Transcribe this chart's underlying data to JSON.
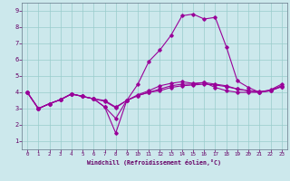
{
  "xlabel": "Windchill (Refroidissement éolien,°C)",
  "bg_color": "#cce8ec",
  "line_color": "#990099",
  "grid_color": "#99cccc",
  "text_color": "#660066",
  "spine_color": "#667788",
  "xlim": [
    -0.5,
    23.5
  ],
  "ylim": [
    0.5,
    9.5
  ],
  "xticks": [
    0,
    1,
    2,
    3,
    4,
    5,
    6,
    7,
    8,
    9,
    10,
    11,
    12,
    13,
    14,
    15,
    16,
    17,
    18,
    19,
    20,
    21,
    22,
    23
  ],
  "yticks": [
    1,
    2,
    3,
    4,
    5,
    6,
    7,
    8,
    9
  ],
  "series1": [
    4.0,
    3.0,
    3.3,
    3.55,
    3.9,
    3.75,
    3.6,
    3.5,
    3.1,
    3.5,
    3.8,
    4.0,
    4.1,
    4.3,
    4.4,
    4.45,
    4.5,
    4.45,
    4.35,
    4.2,
    4.1,
    4.0,
    4.1,
    4.35
  ],
  "series2": [
    4.0,
    3.0,
    3.3,
    3.55,
    3.9,
    3.75,
    3.6,
    3.1,
    2.4,
    3.5,
    4.5,
    5.9,
    6.6,
    7.5,
    8.7,
    8.8,
    8.5,
    8.6,
    6.8,
    4.7,
    4.3,
    4.0,
    4.15,
    4.5
  ],
  "series3": [
    4.0,
    3.0,
    3.3,
    3.55,
    3.9,
    3.75,
    3.6,
    3.1,
    1.5,
    3.5,
    3.8,
    4.0,
    4.2,
    4.4,
    4.5,
    4.5,
    4.6,
    4.3,
    4.1,
    4.0,
    4.0,
    4.0,
    4.1,
    4.35
  ],
  "series4": [
    4.0,
    3.0,
    3.3,
    3.55,
    3.9,
    3.75,
    3.6,
    3.45,
    3.05,
    3.5,
    3.85,
    4.1,
    4.4,
    4.55,
    4.65,
    4.55,
    4.6,
    4.5,
    4.4,
    4.2,
    4.1,
    4.05,
    4.12,
    4.4
  ]
}
